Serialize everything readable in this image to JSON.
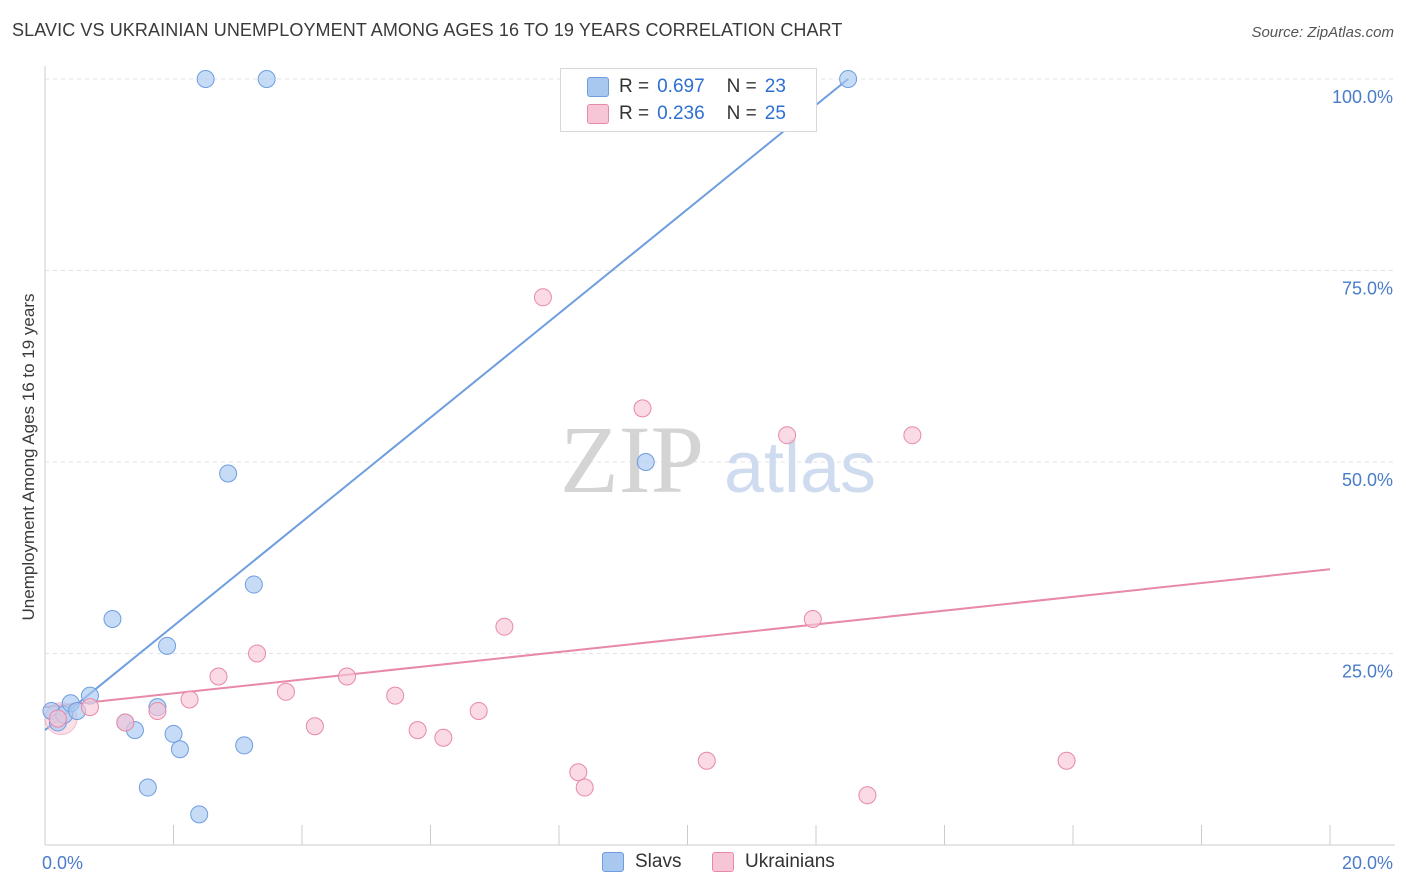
{
  "title": "SLAVIC VS UKRAINIAN UNEMPLOYMENT AMONG AGES 16 TO 19 YEARS CORRELATION CHART",
  "source": "Source: ZipAtlas.com",
  "watermark": {
    "zip": "ZIP",
    "atlas": "atlas"
  },
  "legend": {
    "rows": [
      {
        "r_label": "R =",
        "r_value": "0.697",
        "n_label": "N =",
        "n_value": "23",
        "color": "#a8c8f0",
        "stroke": "#6e9de0"
      },
      {
        "r_label": "R =",
        "r_value": "0.236",
        "n_label": "N =",
        "n_value": "25",
        "color": "#f7c6d6",
        "stroke": "#e889a8"
      }
    ]
  },
  "bottom_legend": [
    {
      "label": "Slavs",
      "color": "#a8c8f0",
      "stroke": "#6e9de0"
    },
    {
      "label": "Ukrainians",
      "color": "#f7c6d6",
      "stroke": "#e889a8"
    }
  ],
  "chart_data": {
    "type": "scatter",
    "xlabel": "",
    "ylabel": "Unemployment Among Ages 16 to 19 years",
    "xlim": [
      0,
      20
    ],
    "ylim": [
      0,
      100
    ],
    "x_tick_labels": [
      "0.0%",
      "20.0%"
    ],
    "y_tick_labels": [
      "25.0%",
      "50.0%",
      "75.0%",
      "100.0%"
    ],
    "grid": true,
    "legend_position": "top-center",
    "series": [
      {
        "name": "Slavs",
        "color": "#6e9de0",
        "fill": "#a8c8f0",
        "points": [
          [
            0.1,
            17.5
          ],
          [
            0.2,
            16.0
          ],
          [
            0.3,
            17.0
          ],
          [
            0.4,
            18.5
          ],
          [
            0.5,
            17.5
          ],
          [
            0.7,
            19.5
          ],
          [
            1.05,
            29.5
          ],
          [
            1.25,
            16.0
          ],
          [
            1.4,
            15.0
          ],
          [
            1.6,
            7.5
          ],
          [
            1.75,
            18.0
          ],
          [
            1.9,
            26.0
          ],
          [
            2.0,
            14.5
          ],
          [
            2.1,
            12.5
          ],
          [
            2.4,
            4.0
          ],
          [
            2.5,
            100.0
          ],
          [
            2.85,
            48.5
          ],
          [
            3.1,
            13.0
          ],
          [
            3.25,
            34.0
          ],
          [
            3.45,
            100.0
          ],
          [
            9.35,
            50.0
          ],
          [
            10.7,
            100.0
          ],
          [
            12.5,
            100.0
          ]
        ],
        "trend": [
          [
            0.0,
            15.0
          ],
          [
            12.5,
            100.0
          ]
        ]
      },
      {
        "name": "Ukrainians",
        "color": "#e889a8",
        "fill": "#f7c6d6",
        "points": [
          [
            0.2,
            16.5
          ],
          [
            0.7,
            18.0
          ],
          [
            1.25,
            16.0
          ],
          [
            1.75,
            17.5
          ],
          [
            2.25,
            19.0
          ],
          [
            2.7,
            22.0
          ],
          [
            3.3,
            25.0
          ],
          [
            3.75,
            20.0
          ],
          [
            4.2,
            15.5
          ],
          [
            4.7,
            22.0
          ],
          [
            5.45,
            19.5
          ],
          [
            5.8,
            15.0
          ],
          [
            6.2,
            14.0
          ],
          [
            6.75,
            17.5
          ],
          [
            7.15,
            28.5
          ],
          [
            7.75,
            71.5
          ],
          [
            8.3,
            9.5
          ],
          [
            8.4,
            7.5
          ],
          [
            9.3,
            57.0
          ],
          [
            10.3,
            11.0
          ],
          [
            11.55,
            53.5
          ],
          [
            11.95,
            29.5
          ],
          [
            12.8,
            6.5
          ],
          [
            13.5,
            53.5
          ],
          [
            15.9,
            11.0
          ]
        ],
        "trend": [
          [
            0.0,
            18.0
          ],
          [
            20.0,
            36.0
          ]
        ]
      }
    ]
  }
}
